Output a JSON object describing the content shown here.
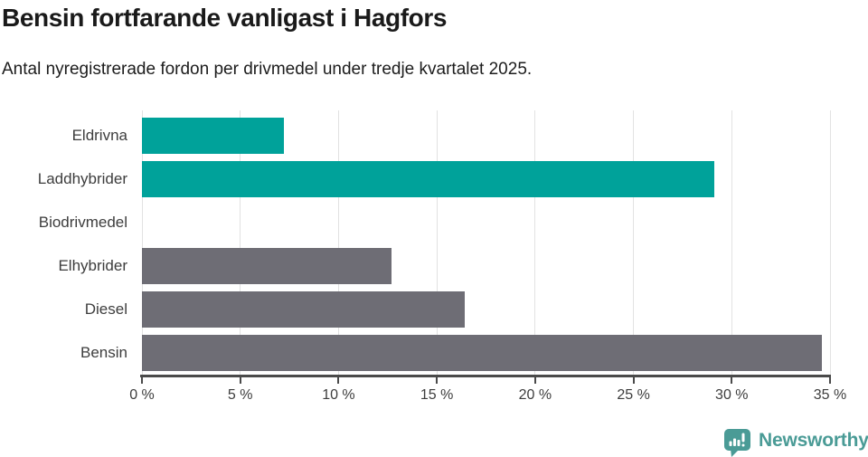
{
  "chart_data": {
    "type": "bar",
    "orientation": "horizontal",
    "title": "Bensin fortfarande vanligast i Hagfors",
    "subtitle": "Antal nyregistrerade fordon per drivmedel under tredje kvartalet 2025.",
    "categories": [
      "Eldrivna",
      "Laddhybrider",
      "Biodrivmedel",
      "Elhybrider",
      "Diesel",
      "Bensin"
    ],
    "values": [
      7.2,
      29.1,
      0,
      12.7,
      16.4,
      34.6
    ],
    "unit": "%",
    "bar_colors": [
      "#00a29a",
      "#00a29a",
      "#6e6d75",
      "#6e6d75",
      "#6e6d75",
      "#6e6d75"
    ],
    "highlight_color": "#00a29a",
    "default_color": "#6e6d75",
    "xlabel": "",
    "ylabel": "",
    "xlim": [
      0,
      35
    ],
    "x_ticks": [
      0,
      5,
      10,
      15,
      20,
      25,
      30,
      35
    ],
    "x_tick_suffix": " %",
    "grid": true,
    "gridline_color": "#e2e2e2",
    "axis_color": "#4a4a4a",
    "legend_position": "none"
  },
  "footer": {
    "logo_text": "Newsworthy",
    "logo_color": "#4a9b96",
    "logo_icon": "speech-bubble-bar-chart-icon"
  }
}
